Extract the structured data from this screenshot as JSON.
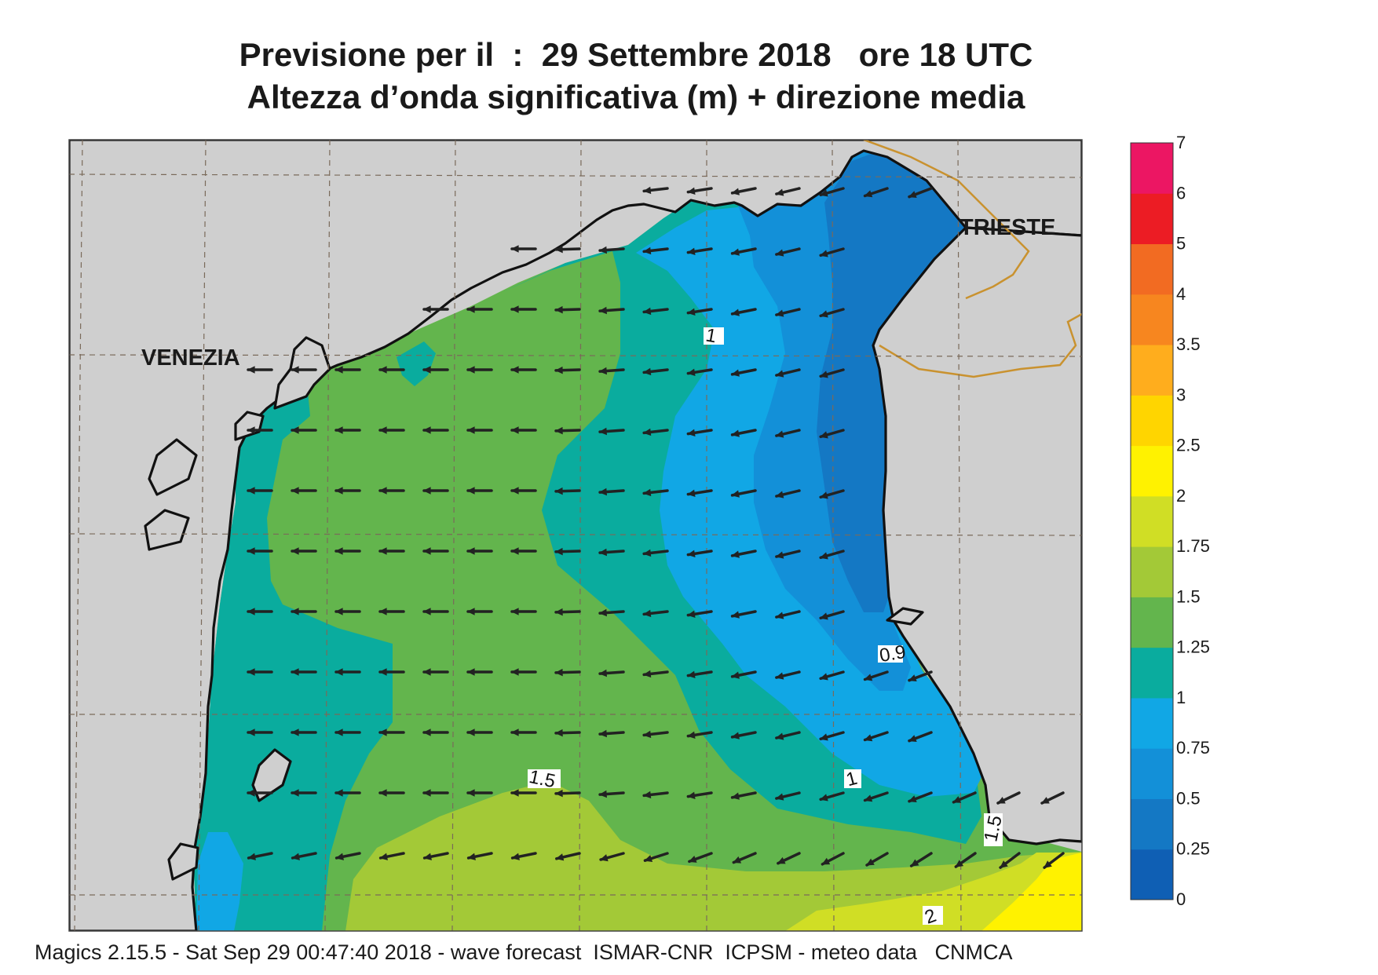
{
  "title_line1": "Previsione per il  :  29 Settembre 2018   ore 18 UTC",
  "title_line2": "Altezza d’onda significativa (m) + direzione media",
  "footer": "Magics 2.15.5 - Sat Sep 29 00:47:40 2018 - wave forecast  ISMAR-CNR  ICPSM - meteo data   CNMCA",
  "places": {
    "venezia": "VENEZIA",
    "trieste": "TRIESTE"
  },
  "contour_labels": {
    "c1a": "1",
    "c09": "0.9",
    "c1b": "1",
    "c15a": "1.5",
    "c15b": "1.5",
    "c2": "2"
  },
  "legend": {
    "levels": [
      "0",
      "0.25",
      "0.5",
      "0.75",
      "1",
      "1.25",
      "1.5",
      "1.75",
      "2",
      "2.5",
      "3",
      "3.5",
      "4",
      "5",
      "6",
      "7"
    ],
    "colors": [
      "#0f5fb4",
      "#1478c4",
      "#1390d8",
      "#11a7e5",
      "#0aac9e",
      "#63b54d",
      "#a3c937",
      "#d0de25",
      "#fff200",
      "#ffd500",
      "#ffad1d",
      "#f7861f",
      "#f26b22",
      "#ec1c24",
      "#ec1663"
    ]
  },
  "colors": {
    "land": "#cfcfcf",
    "coast": "#111111",
    "border": "#c9922f",
    "arrow": "#222222"
  }
}
